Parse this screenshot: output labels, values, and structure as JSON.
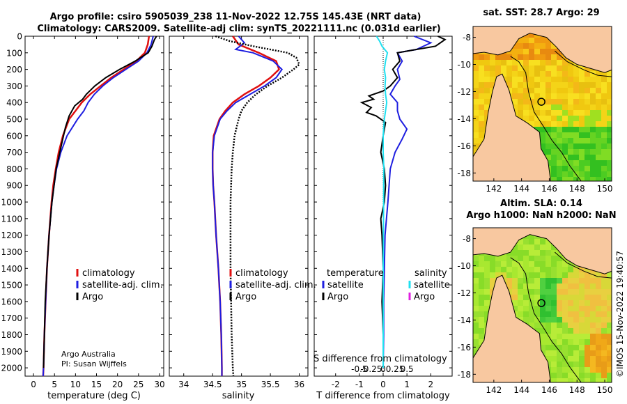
{
  "header": {
    "title_line1": "Argo profile: csiro 5905039_238 11-Nov-2022 12.75S 145.43E (NRT data)",
    "title_line2": "Climatology: CARS2009. Satellite-adj clim: synTS_20221111.nc (0.031d earlier)"
  },
  "credits": {
    "line1": "Argo Australia",
    "line2": "PI: Susan Wijffels",
    "stamp": "©IMOS 15-Nov-2022 19:40:57"
  },
  "colors": {
    "climatology": "#e01010",
    "satellite": "#1e1ee0",
    "argo": "#000000",
    "sat_salinity": "#20e0f0",
    "argo_salinity": "#e020e0",
    "land": "#f8c8a0",
    "coast": "#000000"
  },
  "chart_data": [
    {
      "id": "temperature",
      "type": "line",
      "xlabel": "temperature (deg C)",
      "ylabel": "depth",
      "xlim": [
        -2,
        31
      ],
      "ylim": [
        2050,
        0
      ],
      "xticks": [
        0,
        5,
        10,
        15,
        20,
        25,
        30
      ],
      "yticks": [
        0,
        100,
        200,
        300,
        400,
        500,
        600,
        700,
        800,
        900,
        1000,
        1100,
        1200,
        1300,
        1400,
        1500,
        1600,
        1700,
        1800,
        1900,
        2000
      ],
      "legend": [
        "climatology",
        "satellite-adj. clim.",
        "Argo"
      ],
      "series": [
        {
          "name": "climatology",
          "depth": [
            0,
            50,
            100,
            150,
            200,
            250,
            300,
            350,
            400,
            450,
            500,
            600,
            700,
            800,
            900,
            1000,
            1200,
            1400,
            1600,
            1800,
            2000,
            2050
          ],
          "values": [
            27.5,
            27.2,
            26.5,
            24.5,
            21.5,
            18.5,
            16,
            13.5,
            11.5,
            10,
            8.5,
            7,
            6,
            5.3,
            4.7,
            4.3,
            3.7,
            3.2,
            2.9,
            2.6,
            2.4,
            2.3
          ]
        },
        {
          "name": "satellite-adj. clim.",
          "depth": [
            0,
            50,
            100,
            150,
            200,
            250,
            300,
            350,
            400,
            450,
            500,
            600,
            700,
            800,
            900,
            1000,
            1200,
            1400,
            1600,
            1800,
            2000,
            2050
          ],
          "values": [
            28.5,
            28,
            27,
            25,
            22,
            19,
            16.5,
            14.5,
            13,
            12,
            10.5,
            8,
            6.5,
            5.5,
            4.9,
            4.4,
            3.7,
            3.2,
            2.9,
            2.6,
            2.4,
            2.3
          ]
        },
        {
          "name": "Argo",
          "depth": [
            0,
            20,
            60,
            100,
            150,
            200,
            250,
            300,
            350,
            380,
            420,
            480,
            550,
            650,
            800,
            900,
            1000,
            1200,
            1400,
            1600,
            1800,
            2000
          ],
          "values": [
            29.3,
            28.8,
            28.2,
            27.3,
            24.2,
            20.5,
            17.2,
            14.6,
            12.6,
            11.7,
            9.8,
            8.5,
            7.6,
            6.7,
            5.4,
            4.9,
            4.4,
            3.7,
            3.2,
            2.8,
            2.6,
            2.4
          ]
        }
      ]
    },
    {
      "id": "salinity",
      "type": "line",
      "xlabel": "salinity",
      "xlim": [
        33.75,
        36.15
      ],
      "ylim": [
        2050,
        0
      ],
      "xticks": [
        34,
        34.5,
        35,
        35.5,
        36
      ],
      "legend": [
        "climatology",
        "satellite-adj. clim.",
        "Argo"
      ],
      "series": [
        {
          "name": "climatology",
          "depth": [
            0,
            50,
            100,
            150,
            200,
            250,
            300,
            350,
            400,
            450,
            500,
            600,
            700,
            800,
            900,
            1000,
            1200,
            1400,
            1600,
            1800,
            2000,
            2050
          ],
          "values": [
            34.85,
            34.95,
            35.3,
            35.6,
            35.65,
            35.5,
            35.3,
            35.05,
            34.85,
            34.72,
            34.62,
            34.52,
            34.5,
            34.5,
            34.51,
            34.53,
            34.56,
            34.6,
            34.63,
            34.65,
            34.66,
            34.66
          ]
        },
        {
          "name": "satellite-adj. clim.",
          "depth": [
            0,
            40,
            80,
            100,
            150,
            200,
            250,
            300,
            350,
            400,
            450,
            500,
            600,
            700,
            800,
            900,
            1000,
            1200,
            1400,
            1600,
            1800,
            2000,
            2050
          ],
          "values": [
            34.95,
            35.05,
            34.9,
            35.2,
            35.55,
            35.7,
            35.6,
            35.4,
            35.15,
            34.9,
            34.75,
            34.63,
            34.53,
            34.5,
            34.5,
            34.51,
            34.53,
            34.56,
            34.6,
            34.63,
            34.65,
            34.66,
            34.66
          ]
        },
        {
          "name": "Argo",
          "depth": [
            0,
            30,
            60,
            100,
            130,
            170,
            200,
            250,
            300,
            350,
            400,
            450,
            500,
            600,
            700,
            800,
            900,
            1000,
            1200,
            1400,
            1600,
            1800,
            2000,
            2050
          ],
          "values": [
            34.55,
            34.8,
            35.2,
            35.8,
            35.95,
            36.0,
            35.9,
            35.7,
            35.45,
            35.25,
            35.1,
            35.0,
            34.95,
            34.88,
            34.85,
            34.83,
            34.82,
            34.81,
            34.81,
            34.81,
            34.82,
            34.83,
            34.85,
            34.86
          ]
        }
      ]
    },
    {
      "id": "difference",
      "type": "line",
      "xlabel": "T difference from climatology",
      "xlabel2": "S difference from climatology",
      "xlim": [
        -2.9,
        2.9
      ],
      "ylim": [
        2050,
        0
      ],
      "xticks": [
        -2,
        -1,
        0,
        1,
        2
      ],
      "xticks2": [
        "-0.5",
        "-0.25",
        "0",
        "0.25",
        "0.5"
      ],
      "legend_title_left": "temperature",
      "legend_title_right": "salinity",
      "legend_left": [
        "satellite",
        "Argo"
      ],
      "legend_right": [
        "satellite",
        "Argo"
      ],
      "series": [
        {
          "name": "temperature satellite",
          "depth": [
            0,
            40,
            80,
            100,
            150,
            200,
            260,
            300,
            350,
            400,
            450,
            500,
            560,
            620,
            700,
            800,
            900,
            1000,
            1200,
            1400,
            1600,
            1800,
            2000
          ],
          "values": [
            1.3,
            2.0,
            1.4,
            0.6,
            0.8,
            0.6,
            0.7,
            0.5,
            0.3,
            0.6,
            0.6,
            0.7,
            1.0,
            0.8,
            0.5,
            0.3,
            0.25,
            0.2,
            0.08,
            0.05,
            0.02,
            0.02,
            0.0
          ]
        },
        {
          "name": "temperature Argo",
          "depth": [
            0,
            20,
            60,
            80,
            100,
            150,
            200,
            250,
            300,
            330,
            360,
            380,
            400,
            430,
            460,
            480,
            520,
            600,
            700,
            800,
            900,
            1000,
            1100,
            1200,
            1400,
            1600,
            1800,
            2000
          ],
          "values": [
            2.3,
            2.6,
            2.2,
            1.4,
            0.6,
            0.7,
            0.4,
            0.6,
            0.3,
            0.0,
            -0.6,
            -0.4,
            -0.9,
            -0.5,
            -0.7,
            -0.3,
            0.1,
            0.0,
            -0.1,
            0.05,
            0.1,
            0.05,
            -0.1,
            -0.05,
            0.0,
            -0.05,
            0.0,
            0.0
          ]
        },
        {
          "name": "salinity satellite",
          "depth": [
            0,
            30,
            60,
            100,
            150,
            200,
            250,
            300,
            350,
            400,
            450,
            500,
            600,
            700,
            800,
            900,
            1000,
            1200,
            1400,
            1600,
            1800,
            2000
          ],
          "values": [
            -0.28,
            -0.15,
            -0.05,
            0.18,
            0.1,
            0.05,
            0.1,
            0.08,
            0.1,
            0.15,
            0.1,
            0.05,
            0.0,
            0.0,
            0.03,
            0.02,
            0.02,
            0.01,
            0.0,
            0.0,
            0.0,
            0.0
          ]
        },
        {
          "name": "salinity Argo",
          "depth": [],
          "values": []
        }
      ]
    },
    {
      "id": "sst-map",
      "type": "heatmap",
      "title": "sat. SST: 28.7 Argo: 29",
      "lon_range": [
        140.5,
        150.5
      ],
      "lat_range": [
        -18.6,
        -7.2
      ],
      "xticks": [
        142,
        144,
        146,
        148,
        150
      ],
      "yticks": [
        -8,
        -10,
        -12,
        -14,
        -16,
        -18
      ],
      "profile_lon": 145.43,
      "profile_lat": -12.75
    },
    {
      "id": "sla-map",
      "type": "heatmap",
      "title": "Altim. SLA: 0.14",
      "subtitle": "Argo h1000: NaN h2000: NaN",
      "lon_range": [
        140.5,
        150.5
      ],
      "lat_range": [
        -18.6,
        -7.2
      ],
      "xticks": [
        142,
        144,
        146,
        148,
        150
      ],
      "yticks": [
        -8,
        -10,
        -12,
        -14,
        -16,
        -18
      ],
      "profile_lon": 145.43,
      "profile_lat": -12.75
    }
  ]
}
